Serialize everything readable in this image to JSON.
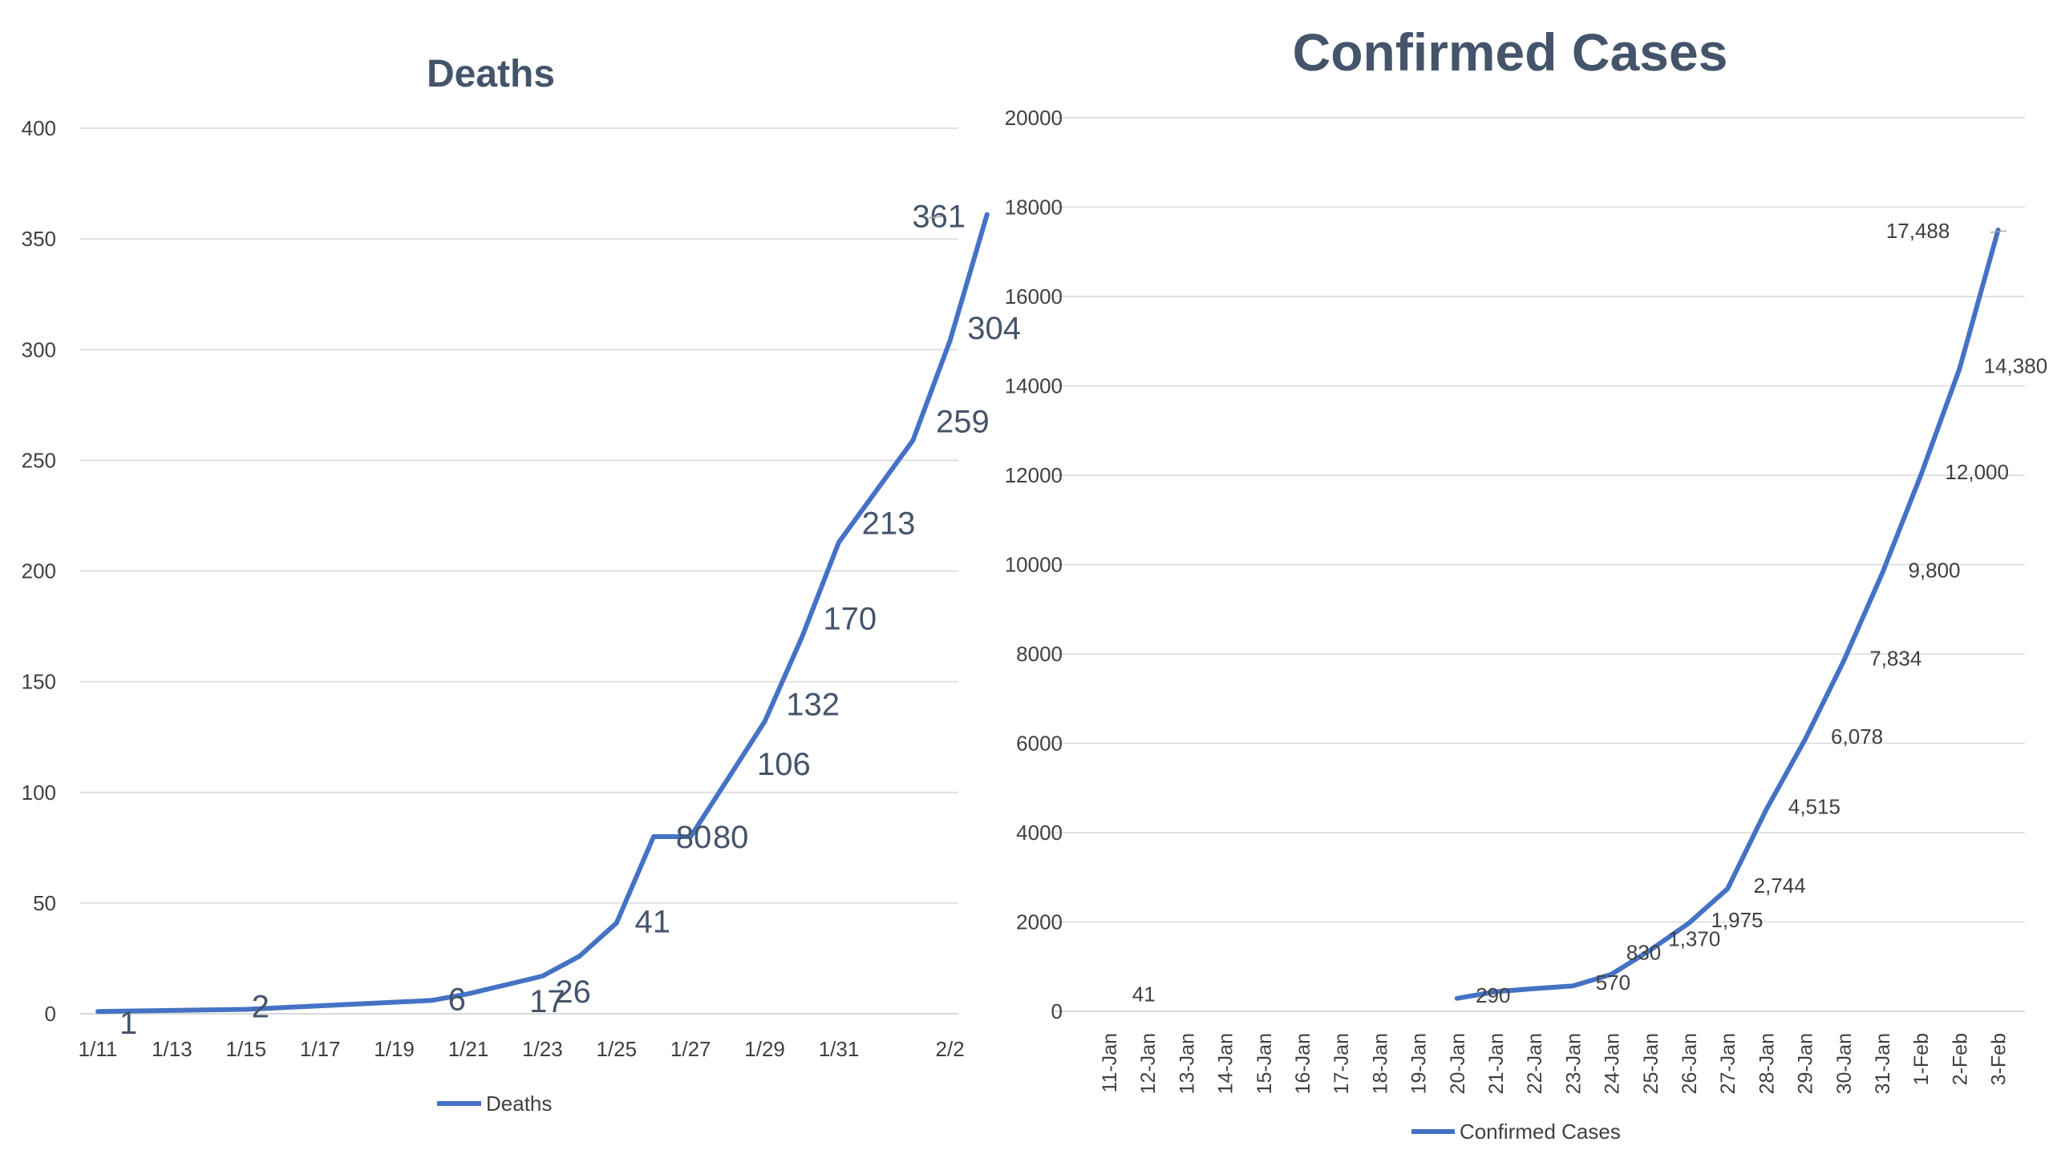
{
  "chart_data": [
    {
      "type": "line",
      "title": "Deaths",
      "x_tick_labels": [
        "1/11",
        "1/13",
        "1/15",
        "1/17",
        "1/19",
        "1/21",
        "1/23",
        "1/25",
        "1/27",
        "1/29",
        "1/31",
        "2/2"
      ],
      "x": [
        "1/11",
        "1/15",
        "1/20",
        "1/21",
        "1/23",
        "1/24",
        "1/25",
        "1/26",
        "1/27",
        "1/28",
        "1/29",
        "1/30",
        "1/31",
        "2/1",
        "2/2",
        "2/3"
      ],
      "y_ticks": [
        0,
        50,
        100,
        150,
        200,
        250,
        300,
        350,
        400
      ],
      "ylim": [
        0,
        400
      ],
      "series": [
        {
          "name": "Deaths",
          "values": [
            1,
            2,
            6,
            9,
            17,
            26,
            41,
            80,
            80,
            106,
            132,
            170,
            213,
            259,
            304,
            361
          ],
          "labels": [
            "1",
            "2",
            "6",
            "",
            "17",
            "26",
            "41",
            "80",
            "80",
            "106",
            "132",
            "170",
            "213",
            "259",
            "304",
            "361"
          ]
        }
      ],
      "legend": {
        "position": "bottom",
        "label": "Deaths"
      },
      "grid": true,
      "color": "#4472c4"
    },
    {
      "type": "line",
      "title": "Confirmed Cases",
      "categories": [
        "11-Jan",
        "12-Jan",
        "13-Jan",
        "14-Jan",
        "15-Jan",
        "16-Jan",
        "17-Jan",
        "18-Jan",
        "19-Jan",
        "20-Jan",
        "21-Jan",
        "22-Jan",
        "23-Jan",
        "24-Jan",
        "25-Jan",
        "26-Jan",
        "27-Jan",
        "28-Jan",
        "29-Jan",
        "30-Jan",
        "31-Jan",
        "1-Feb",
        "2-Feb",
        "3-Feb"
      ],
      "y_ticks": [
        0,
        2000,
        4000,
        6000,
        8000,
        10000,
        12000,
        14000,
        16000,
        18000,
        20000
      ],
      "ylim": [
        0,
        20000
      ],
      "series": [
        {
          "name": "Confirmed Cases",
          "values": [
            null,
            41,
            null,
            null,
            null,
            null,
            null,
            null,
            null,
            290,
            440,
            510,
            570,
            830,
            1370,
            1975,
            2744,
            4515,
            6078,
            7834,
            9800,
            12000,
            14380,
            17488
          ],
          "labels": [
            "",
            "41",
            "",
            "",
            "",
            "",
            "",
            "",
            "",
            "290",
            "",
            "",
            "570",
            "830",
            "1,370",
            "1,975",
            "2,744",
            "4,515",
            "6,078",
            "7,834",
            "9,800",
            "12,000",
            "14,380",
            "17,488"
          ]
        }
      ],
      "legend": {
        "position": "bottom",
        "label": "Confirmed Cases"
      },
      "grid": true,
      "color": "#4472c4"
    }
  ]
}
